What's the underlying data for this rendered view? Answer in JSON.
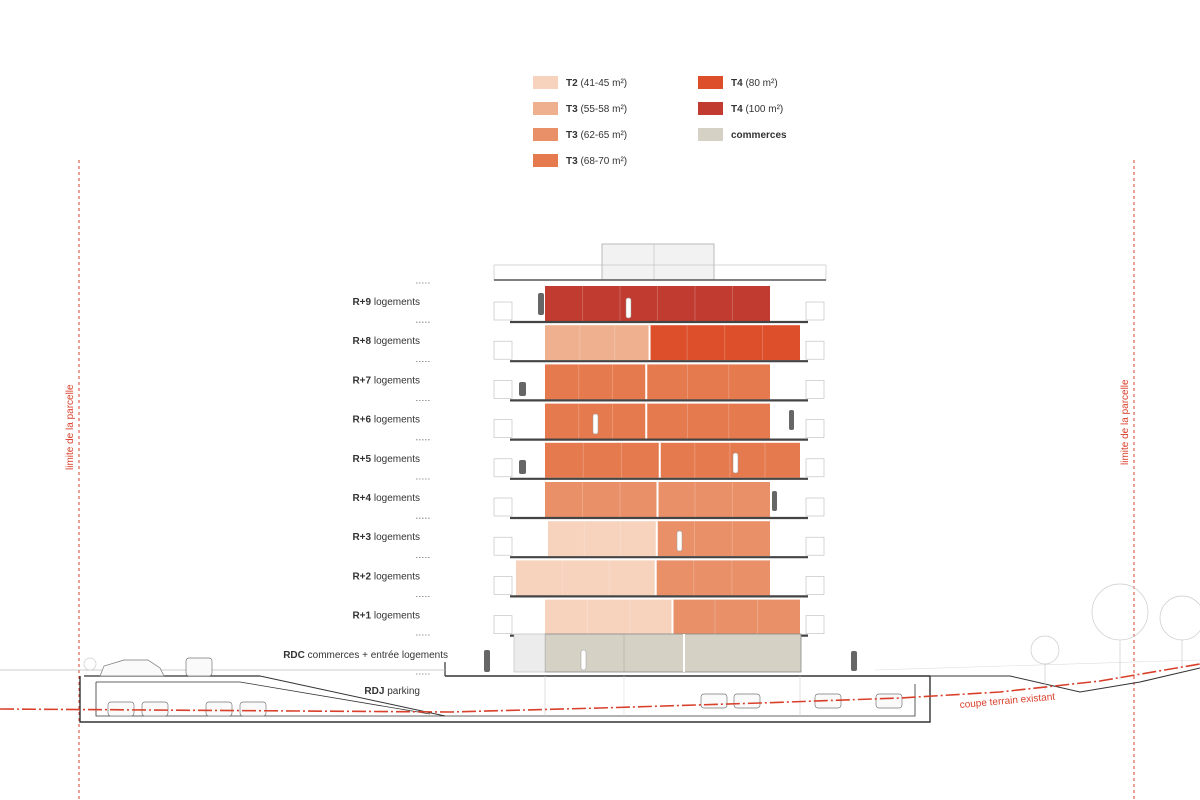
{
  "colors": {
    "t2": "#f7d2bd",
    "t3a": "#efb08f",
    "t3b": "#e99068",
    "t3c": "#e67a4f",
    "t4a": "#dd4e2a",
    "t4b": "#c13b30",
    "commerces": "#d6d1c5",
    "red_line": "#d9402b"
  },
  "legend": [
    {
      "bold": "T2",
      "rest": " (41-45 m²)",
      "color_key": "t2"
    },
    {
      "bold": "T3",
      "rest": " (55-58 m²)",
      "color_key": "t3a"
    },
    {
      "bold": "T3",
      "rest": " (62-65 m²)",
      "color_key": "t3b"
    },
    {
      "bold": "T3",
      "rest": " (68-70 m²)",
      "color_key": "t3c"
    },
    {
      "bold": "T4",
      "rest": " (80 m²)",
      "color_key": "t4a"
    },
    {
      "bold": "T4",
      "rest": " (100 m²)",
      "color_key": "t4b"
    },
    {
      "bold": "commerces",
      "rest": "",
      "color_key": "commerces"
    }
  ],
  "floors": [
    {
      "code": "R+9",
      "label": " logements",
      "units": [
        {
          "color_key": "t4b",
          "fraction": 1.0
        }
      ]
    },
    {
      "code": "R+8",
      "label": " logements",
      "units": [
        {
          "color_key": "t3a",
          "fraction": 0.41
        },
        {
          "color_key": "t4a",
          "fraction": 0.59
        }
      ]
    },
    {
      "code": "R+7",
      "label": " logements",
      "units": [
        {
          "color_key": "t3c",
          "fraction": 0.45
        },
        {
          "color_key": "t3c",
          "fraction": 0.55
        }
      ]
    },
    {
      "code": "R+6",
      "label": " logements",
      "units": [
        {
          "color_key": "t3c",
          "fraction": 0.45
        },
        {
          "color_key": "t3c",
          "fraction": 0.55
        }
      ]
    },
    {
      "code": "R+5",
      "label": " logements",
      "units": [
        {
          "color_key": "t3c",
          "fraction": 0.45
        },
        {
          "color_key": "t3c",
          "fraction": 0.55
        }
      ]
    },
    {
      "code": "R+4",
      "label": " logements",
      "units": [
        {
          "color_key": "t3b",
          "fraction": 0.5
        },
        {
          "color_key": "t3b",
          "fraction": 0.5
        }
      ]
    },
    {
      "code": "R+3",
      "label": " logements",
      "units": [
        {
          "color_key": "t2",
          "fraction": 0.49
        },
        {
          "color_key": "t3b",
          "fraction": 0.51
        }
      ]
    },
    {
      "code": "R+2",
      "label": " logements",
      "units": [
        {
          "color_key": "t2",
          "fraction": 0.55
        },
        {
          "color_key": "t3b",
          "fraction": 0.45
        }
      ]
    },
    {
      "code": "R+1",
      "label": " logements",
      "units": [
        {
          "color_key": "t2",
          "fraction": 0.5
        },
        {
          "color_key": "t3b",
          "fraction": 0.5
        }
      ]
    }
  ],
  "ground": {
    "code": "RDC",
    "label": " commerces + entrée logements"
  },
  "basement": {
    "code": "RDJ",
    "label": " parking"
  },
  "annotations": {
    "limit_left": "limite de la parcelle",
    "limit_right": "limite de la parcelle",
    "terrain": "coupe terrain existant"
  }
}
